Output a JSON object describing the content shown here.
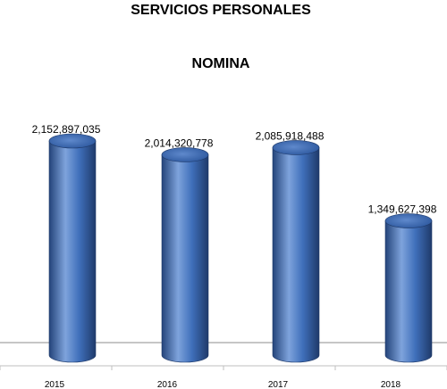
{
  "chart_data": {
    "type": "bar",
    "title": "SERVICIOS PERSONALES",
    "subtitle": "NOMINA",
    "categories": [
      "2015",
      "2016",
      "2017",
      "2018"
    ],
    "values": [
      2152897035,
      2014320778,
      2085918488,
      1349627398
    ],
    "data_labels": [
      "2,152,897,035",
      "2,014,320,778",
      "2,085,918,488",
      "1,349,627,398"
    ],
    "xlabel": "",
    "ylabel": "",
    "legend": "none",
    "grid": false,
    "bar_style": "3d-cylinder",
    "colors": {
      "bar": "#3f6fba",
      "bar_dark": "#24447a",
      "bar_light": "#7ea3dc",
      "axis": "#8c8c8c"
    }
  }
}
